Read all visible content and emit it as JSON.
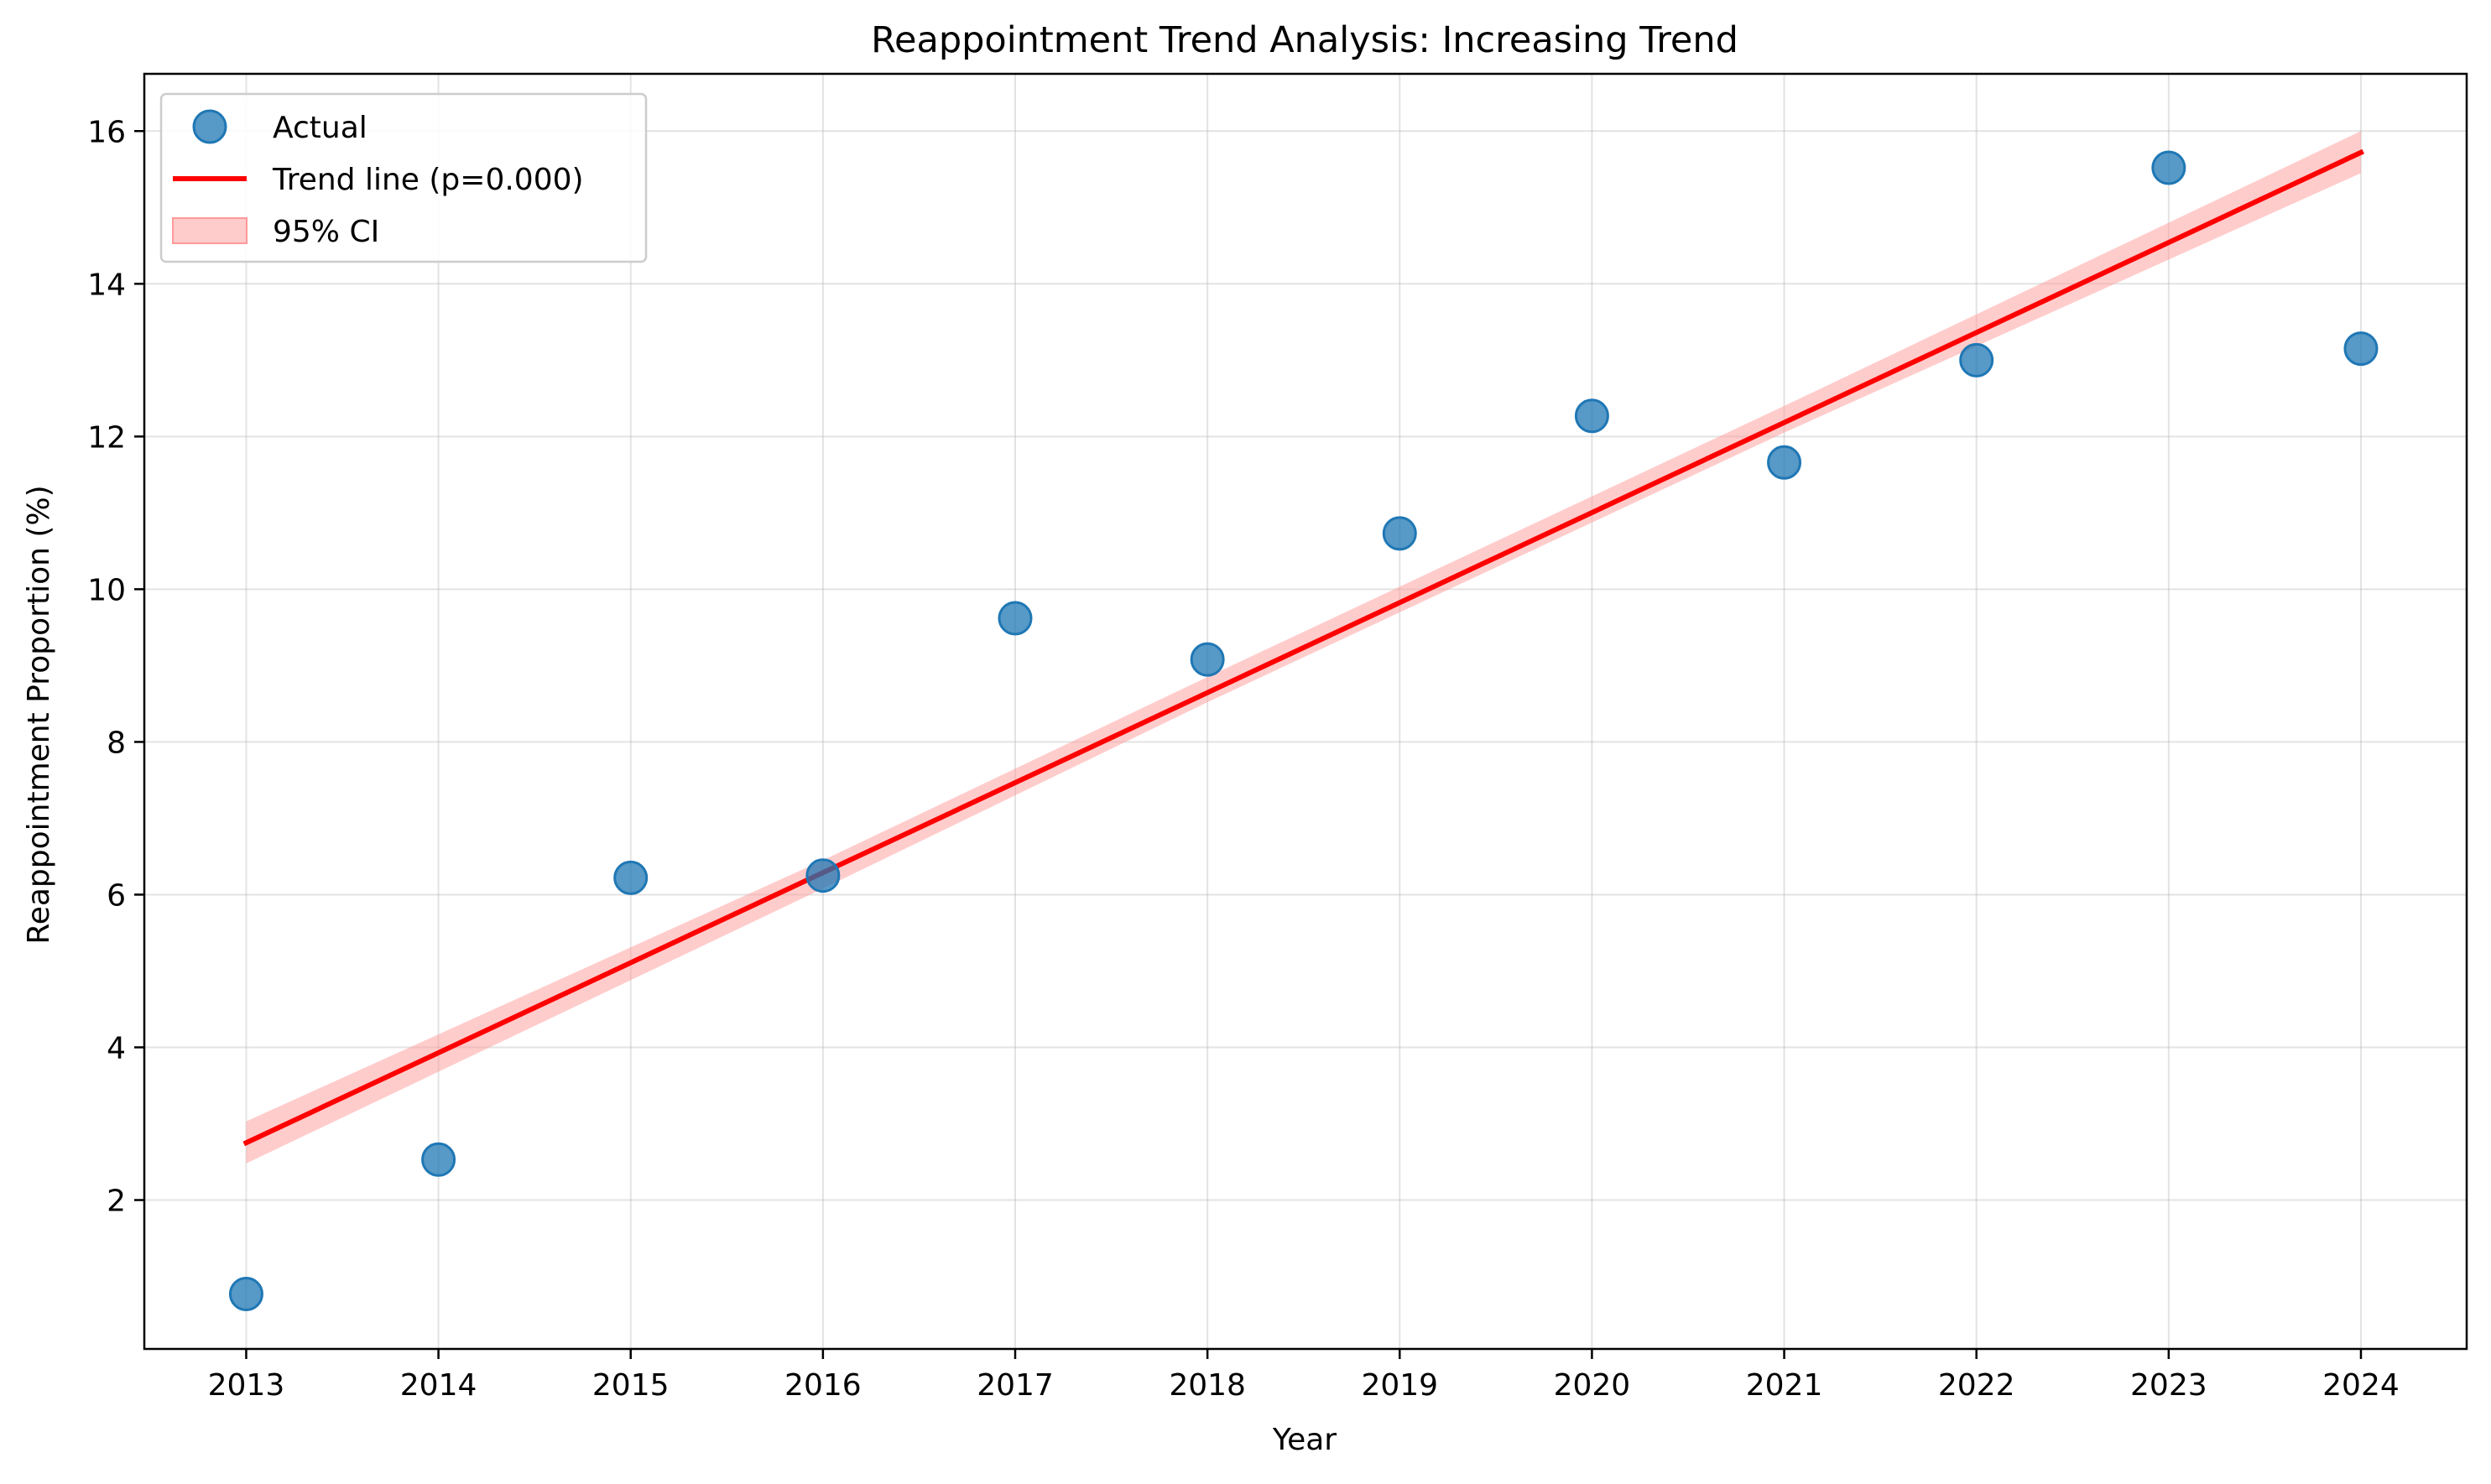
{
  "chart_data": {
    "type": "scatter",
    "title": "Reappointment Trend Analysis: Increasing Trend",
    "xlabel": "Year",
    "ylabel": "Reappointment Proportion (%)",
    "xlim": [
      2012.47,
      2024.55
    ],
    "ylim": [
      0.05,
      16.75
    ],
    "x_ticks": [
      2013,
      2014,
      2015,
      2016,
      2017,
      2018,
      2019,
      2020,
      2021,
      2022,
      2023,
      2024
    ],
    "y_ticks": [
      2,
      4,
      6,
      8,
      10,
      12,
      14,
      16
    ],
    "grid": true,
    "legend_position": "top-left",
    "series": [
      {
        "name": "Actual",
        "kind": "scatter",
        "color": "#1f77b4",
        "x": [
          2013,
          2014,
          2015,
          2016,
          2017,
          2018,
          2019,
          2020,
          2021,
          2022,
          2023,
          2024
        ],
        "y": [
          0.77,
          2.53,
          6.22,
          6.25,
          9.62,
          9.08,
          10.73,
          12.27,
          11.66,
          13.0,
          15.52,
          13.15
        ]
      },
      {
        "name": "Trend line (p=0.000)",
        "kind": "line",
        "color": "#ff0000",
        "x": [
          2013,
          2024
        ],
        "y": [
          2.75,
          15.72
        ]
      },
      {
        "name": "95% CI",
        "kind": "band",
        "color": "#ff9999",
        "x": [
          2013,
          2016,
          2018,
          2021,
          2024
        ],
        "lower": [
          2.48,
          6.08,
          8.52,
          12.05,
          15.45
        ],
        "upper": [
          3.03,
          6.45,
          8.85,
          12.4,
          16.0
        ]
      }
    ]
  }
}
